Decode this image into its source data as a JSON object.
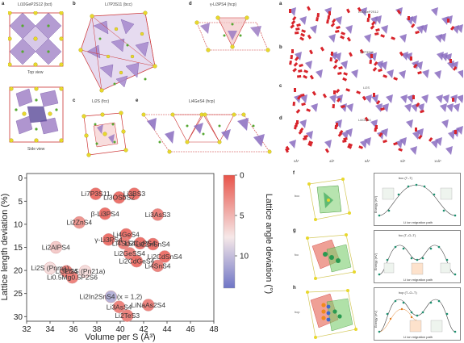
{
  "panels": {
    "a": {
      "letter": "a",
      "title": "Li10GeP2S12 (bct)",
      "top_caption": "Top view",
      "side_caption": "Side view"
    },
    "b": {
      "letter": "b",
      "title": "Li7P3S11 (bcc)"
    },
    "c": {
      "letter": "c",
      "title": "Li2S (fcc)"
    },
    "d": {
      "letter": "d",
      "title": "γ-Li3PS4 (hcp)"
    },
    "e_struct": {
      "letter": "e",
      "title": "Li4GeS4 (hcp)"
    },
    "right_top": {
      "letters": [
        "a",
        "b",
        "c",
        "d"
      ],
      "row_labels": [
        "Li10GeP2S12",
        "Li7P3S11",
        "Li2S",
        "Li4GeS4"
      ],
      "col_labels": [
        "0Å³",
        "4Å³",
        "8Å³",
        "9Å³",
        "10Å³"
      ]
    },
    "f": {
      "letters": [
        "f",
        "g",
        "h"
      ],
      "row_labels": [
        "bcc",
        "fcc",
        "hcp"
      ],
      "titles": [
        "bcc (T–T)",
        "fcc (T–O–T)",
        "hcp (T–O–T)"
      ],
      "xlabel": "Li ion migration path",
      "ylabel": "Energy (eV)"
    }
  },
  "chart_data": {
    "type": "scatter",
    "xlabel": "Volume per S (Å³)",
    "ylabel": "Lattice length deviation (%)",
    "colorbar_label": "Lattice angle deviation (°)",
    "xlim": [
      32,
      48
    ],
    "ylim": [
      -1,
      31
    ],
    "y_inverted": true,
    "xticks": [
      32,
      34,
      36,
      38,
      40,
      42,
      44,
      46,
      48
    ],
    "yticks": [
      0,
      5,
      10,
      15,
      20,
      25,
      30
    ],
    "colorbar_ticks": [
      0,
      5,
      10
    ],
    "colorbar_range": [
      0,
      14
    ],
    "colors": {
      "low": "#e8544a",
      "mid": "#f6e8e8",
      "high": "#6f75c6"
    },
    "points": [
      {
        "label": "Li7P3S11",
        "x": 37.9,
        "y": 3.4,
        "c": 1
      },
      {
        "label": "Li3OSbS2",
        "x": 39.9,
        "y": 4.2,
        "c": 1
      },
      {
        "label": "Li3BS3",
        "x": 41.2,
        "y": 3.4,
        "c": 1
      },
      {
        "label": "β-Li3PS4",
        "x": 38.7,
        "y": 7.7,
        "c": 1
      },
      {
        "label": "Li3AsS3",
        "x": 43.2,
        "y": 7.9,
        "c": 2
      },
      {
        "label": "Li2ZnS4",
        "x": 36.5,
        "y": 9.6,
        "c": 3
      },
      {
        "label": "Li4GeS4",
        "x": 40.5,
        "y": 12.2,
        "c": 1
      },
      {
        "label": "γ-Li3PS4",
        "x": 39.0,
        "y": 13.3,
        "c": 1
      },
      {
        "label": "Li4SiS4",
        "x": 40.3,
        "y": 14.1,
        "c": 2
      },
      {
        "label": "Li2CuPS4",
        "x": 41.7,
        "y": 14.1,
        "c": 1
      },
      {
        "label": "Li2ZnSnS4",
        "x": 42.8,
        "y": 14.3,
        "c": 1
      },
      {
        "label": "Li2AlPS4",
        "x": 34.5,
        "y": 15.0,
        "c": 6
      },
      {
        "label": "Li2GeSS4",
        "x": 40.8,
        "y": 16.3,
        "c": 2
      },
      {
        "label": "Li2CdGeS4",
        "x": 41.4,
        "y": 18.0,
        "c": 1
      },
      {
        "label": "Li2CdSnS4",
        "x": 43.8,
        "y": 17.0,
        "c": 1
      },
      {
        "label": "Li4SnS4",
        "x": 43.2,
        "y": 19.0,
        "c": 2
      },
      {
        "label": "Li2S (Pnma)",
        "x": 34.0,
        "y": 19.5,
        "c": 7
      },
      {
        "label": "Li3PS4",
        "x": 35.4,
        "y": 20.2,
        "c": 2
      },
      {
        "label": "Li2S (Pn21a)",
        "x": 37.0,
        "y": 20.2,
        "c": 7
      },
      {
        "label": "Li0.5Mg0.5P2S6",
        "x": 35.9,
        "y": 21.5,
        "c": 2
      },
      {
        "label": "Li2In2SnS4 (x = 1,2)",
        "x": 39.2,
        "y": 25.7,
        "c": 11
      },
      {
        "label": "Li3AsS4",
        "x": 39.9,
        "y": 27.9,
        "c": 2
      },
      {
        "label": "LiNaAs2S4",
        "x": 42.4,
        "y": 27.5,
        "c": 2
      },
      {
        "label": "Li2TeS3",
        "x": 40.6,
        "y": 29.8,
        "c": 2
      }
    ]
  }
}
